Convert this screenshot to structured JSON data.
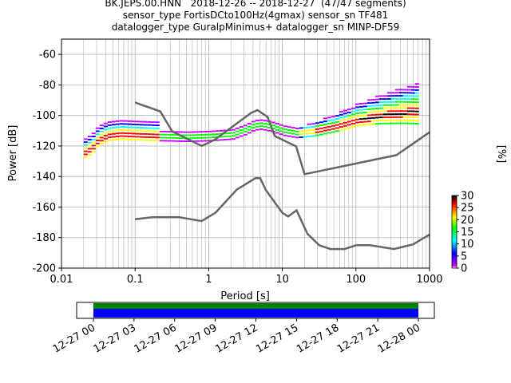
{
  "title_lines": [
    "BK.JEPS.00.HNN   2018-12-26 -- 2018-12-27  (47/47 segments)",
    "sensor_type FortisDCto100Hz(4gmax) sensor_sn TF481",
    "datalogger_type GuralpMinimus+ datalogger_sn MINP-DF59"
  ],
  "chart_data": [
    {
      "type": "heatmap",
      "title": "BK.JEPS.00.HNN   2018-12-26 -- 2018-12-27  (47/47 segments)",
      "xlabel": "Period [s]",
      "ylabel": "Power [dB]",
      "xscale": "log",
      "xlim": [
        0.01,
        1000
      ],
      "ylim": [
        -200,
        -50
      ],
      "x_ticks": [
        "0.01",
        "0.1",
        "1",
        "10",
        "100",
        "1000"
      ],
      "x_tick_values": [
        0.01,
        0.1,
        1,
        10,
        100,
        1000
      ],
      "y_ticks": [
        "-60",
        "-80",
        "-100",
        "-120",
        "-140",
        "-160",
        "-180",
        "-200"
      ],
      "y_tick_values": [
        -60,
        -80,
        -100,
        -120,
        -140,
        -160,
        -180,
        -200
      ],
      "grid": true,
      "colorbar": {
        "label": "[%]",
        "range": [
          0,
          30
        ],
        "ticks": [
          "0",
          "5",
          "10",
          "15",
          "20",
          "25",
          "30"
        ],
        "tick_values": [
          0,
          5,
          10,
          15,
          20,
          25,
          30
        ],
        "colormap": [
          "#ffffff",
          "#cc00ff",
          "#0000ff",
          "#00ffff",
          "#00ff00",
          "#ffff00",
          "#ff0000",
          "#000000"
        ]
      },
      "noise_models": [
        {
          "id": "nhnm",
          "color": "#666666",
          "points": [
            [
              0.1,
              -91.5
            ],
            [
              0.22,
              -97.4
            ],
            [
              0.32,
              -110.5
            ],
            [
              0.8,
              -120
            ],
            [
              1.2,
              -116
            ],
            [
              3.8,
              -98.2
            ],
            [
              4.6,
              -96.5
            ],
            [
              6.3,
              -101
            ],
            [
              7.9,
              -113.5
            ],
            [
              15.4,
              -120.3
            ],
            [
              20,
              -138.5
            ],
            [
              354.8,
              -126
            ],
            [
              1000,
              -111
            ]
          ]
        },
        {
          "id": "nlnm",
          "color": "#666666",
          "points": [
            [
              0.1,
              -168
            ],
            [
              0.17,
              -166.7
            ],
            [
              0.4,
              -166.7
            ],
            [
              0.8,
              -169.2
            ],
            [
              1.24,
              -163.7
            ],
            [
              2.4,
              -148.6
            ],
            [
              4.3,
              -141.1
            ],
            [
              5.0,
              -141.1
            ],
            [
              6.0,
              -149
            ],
            [
              10,
              -163.8
            ],
            [
              12,
              -166.2
            ],
            [
              15.6,
              -162.1
            ],
            [
              21.9,
              -177.5
            ],
            [
              31.6,
              -185
            ],
            [
              45,
              -187.5
            ],
            [
              70,
              -187.5
            ],
            [
              101,
              -185
            ],
            [
              154,
              -185
            ],
            [
              328,
              -187.5
            ],
            [
              600,
              -184.4
            ],
            [
              1000,
              -178
            ]
          ]
        }
      ],
      "median_curve": [
        [
          0.02,
          -125
        ],
        [
          0.025,
          -122
        ],
        [
          0.03,
          -117
        ],
        [
          0.04,
          -114
        ],
        [
          0.06,
          -113
        ],
        [
          0.1,
          -113.5
        ],
        [
          0.2,
          -114
        ],
        [
          0.5,
          -114.5
        ],
        [
          1,
          -114
        ],
        [
          2,
          -113
        ],
        [
          3,
          -110
        ],
        [
          4,
          -107
        ],
        [
          5,
          -106.5
        ],
        [
          7,
          -108
        ],
        [
          10,
          -110.5
        ],
        [
          15,
          -112
        ],
        [
          25,
          -111
        ],
        [
          50,
          -108
        ],
        [
          100,
          -104
        ],
        [
          200,
          -101
        ],
        [
          400,
          -99
        ],
        [
          650,
          -98
        ]
      ],
      "time_coverage": {
        "x_ticks": [
          "12-27 00",
          "12-27 03",
          "12-27 06",
          "12-27 09",
          "12-27 12",
          "12-27 15",
          "12-27 18",
          "12-27 21",
          "12-28 00"
        ],
        "covered_fraction_start": 0,
        "covered_fraction_end": 1
      }
    }
  ]
}
